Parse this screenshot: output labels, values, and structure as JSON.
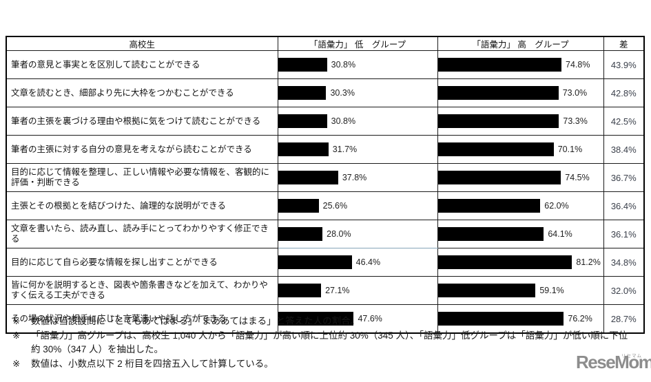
{
  "table": {
    "header": {
      "student": "高校生",
      "low_group": "「語彙力」 低　グループ",
      "high_group": "「語彙力」 高　グループ",
      "diff": "差"
    },
    "bar_color": "#000000",
    "unit": "%",
    "rows": [
      {
        "label": "筆者の意見と事実とを区別して読むことができる",
        "low": 30.8,
        "high": 74.8,
        "diff": 43.9
      },
      {
        "label": "文章を読むとき、細部より先に大枠をつかむことができる",
        "low": 30.3,
        "high": 73.0,
        "diff": 42.8
      },
      {
        "label": "筆者の主張を裏づける理由や根拠に気をつけて読むことができる",
        "low": 30.8,
        "high": 73.3,
        "diff": 42.5
      },
      {
        "label": "筆者の主張に対する自分の意見を考えながら読むことができる",
        "low": 31.7,
        "high": 70.1,
        "diff": 38.4
      },
      {
        "label": "目的に応じて情報を整理し、正しい情報や必要な情報を、客観的に評価・判断できる",
        "low": 37.8,
        "high": 74.5,
        "diff": 36.7
      },
      {
        "label": "主張とその根拠とを結びつけた、論理的な説明ができる",
        "low": 25.6,
        "high": 62.0,
        "diff": 36.4
      },
      {
        "label": "文章を書いたら、読み直し、読み手にとってわかりやすく修正できる",
        "low": 28.0,
        "high": 64.1,
        "diff": 36.1
      },
      {
        "label": "目的に応じて自ら必要な情報を探し出すことができる",
        "low": 46.4,
        "high": 81.2,
        "diff": 34.8
      },
      {
        "label": "皆に何かを説明するとき、図表や箇条書きなどを加えて、わかりやすく伝える工夫ができる",
        "low": 27.1,
        "high": 59.1,
        "diff": 32.0
      },
      {
        "label": "その場の状況や相手に応じた言葉遣いや話し方ができる",
        "low": 47.6,
        "high": 76.2,
        "diff": 28.7
      }
    ]
  },
  "notes": {
    "marker": "※",
    "items": [
      "数値は当該設問に「とてもあてはまる」「まああてはまる」と答えた人の割合。",
      "「語彙力」高グループは、高校生 1,040 人から「語彙力」が高い順に上位約 30%（345 人）、「語彙力」低グループは「語彙力」が低い順に下位約 30%（347 人）を抽出した。",
      "数値は、小数点以下 2 桁目を四捨五入して計算している。"
    ]
  },
  "logo": {
    "text": "ReseMom.",
    "ruby": "リセマム",
    "color": "#8d8d8d"
  },
  "chart_data": {
    "type": "bar",
    "orientation": "horizontal",
    "title": "",
    "categories": [
      "筆者の意見と事実とを区別して読むことができる",
      "文章を読むとき、細部より先に大枠をつかむことができる",
      "筆者の主張を裏づける理由や根拠に気をつけて読むことができる",
      "筆者の主張に対する自分の意見を考えながら読むことができる",
      "目的に応じて情報を整理し、正しい情報や必要な情報を、客観的に評価・判断できる",
      "主張とその根拠とを結びつけた、論理的な説明ができる",
      "文章を書いたら、読み直し、読み手にとってわかりやすく修正できる",
      "目的に応じて自ら必要な情報を探し出すことができる",
      "皆に何かを説明するとき、図表や箇条書きなどを加えて、わかりやすく伝える工夫ができる",
      "その場の状況や相手に応じた言葉遣いや話し方ができる"
    ],
    "series": [
      {
        "name": "「語彙力」低 グループ",
        "values": [
          30.8,
          30.3,
          30.8,
          31.7,
          37.8,
          25.6,
          28.0,
          46.4,
          27.1,
          47.6
        ]
      },
      {
        "name": "「語彙力」高 グループ",
        "values": [
          74.8,
          73.0,
          73.3,
          70.1,
          74.5,
          62.0,
          64.1,
          81.2,
          59.1,
          76.2
        ]
      },
      {
        "name": "差",
        "values": [
          43.9,
          42.8,
          42.5,
          38.4,
          36.7,
          36.4,
          36.1,
          34.8,
          32.0,
          28.7
        ]
      }
    ],
    "unit": "%",
    "value_range": [
      0,
      100
    ],
    "bar_color": "#000000",
    "legend_position": "column-headers",
    "grid": false
  }
}
